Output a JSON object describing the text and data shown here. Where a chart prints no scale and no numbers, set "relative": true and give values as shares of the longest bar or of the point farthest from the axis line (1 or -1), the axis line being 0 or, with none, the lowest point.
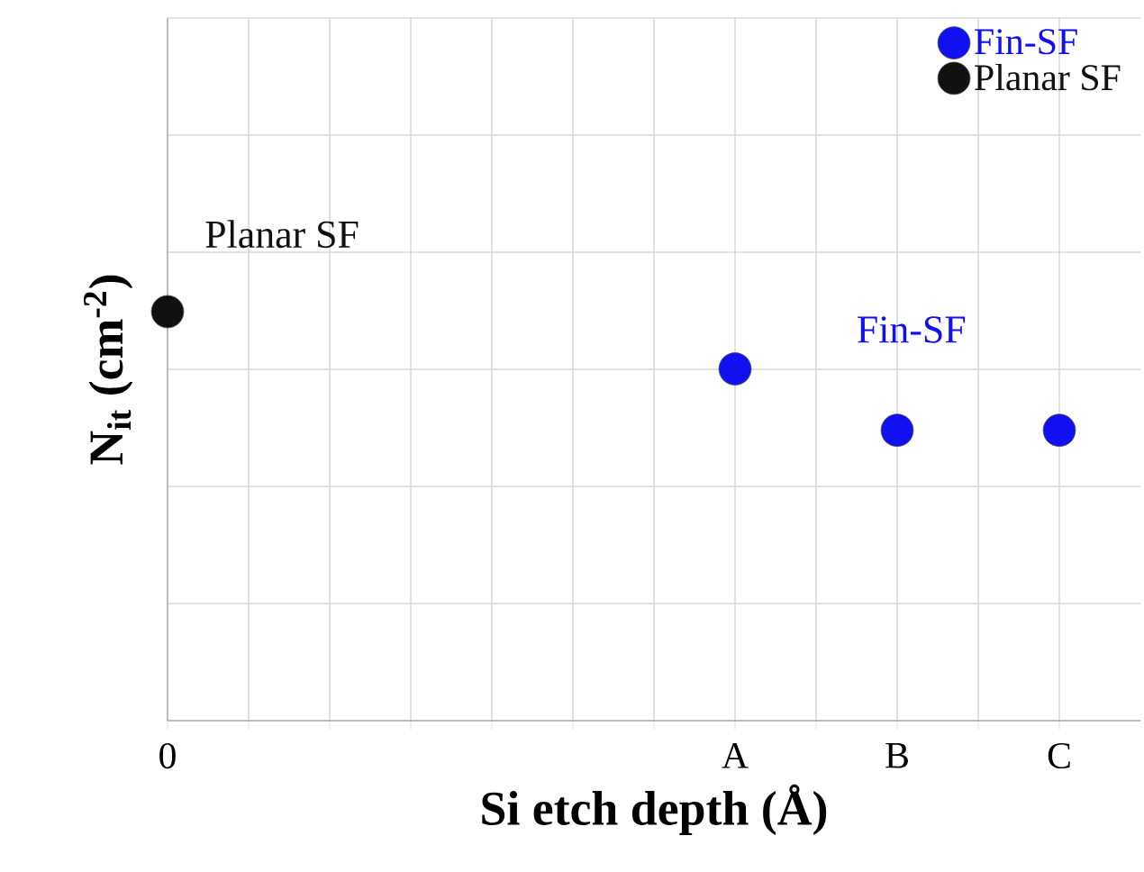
{
  "chart_data": {
    "type": "scatter",
    "relative": true,
    "xlabel": "Si etch depth (Å)",
    "ylabel": "N$_{it}$ (cm$^{-2}$)",
    "categories": [
      "0",
      null,
      null,
      null,
      null,
      null,
      null,
      "A",
      null,
      "B",
      null,
      "C"
    ],
    "series": [
      {
        "name": "Fin-SF",
        "color": "#1010f0",
        "values": [
          null,
          null,
          null,
          null,
          null,
          null,
          null,
          0.86,
          null,
          0.71,
          null,
          0.71
        ]
      },
      {
        "name": "Planar SF",
        "color": "#111111",
        "values": [
          1,
          null,
          null,
          null,
          null,
          null,
          null,
          null,
          null,
          null,
          null,
          null
        ]
      }
    ],
    "annotations": [
      "Fin-SF",
      "Planar SF"
    ],
    "grid": true,
    "legend": "top right",
    "marker": "circle"
  }
}
